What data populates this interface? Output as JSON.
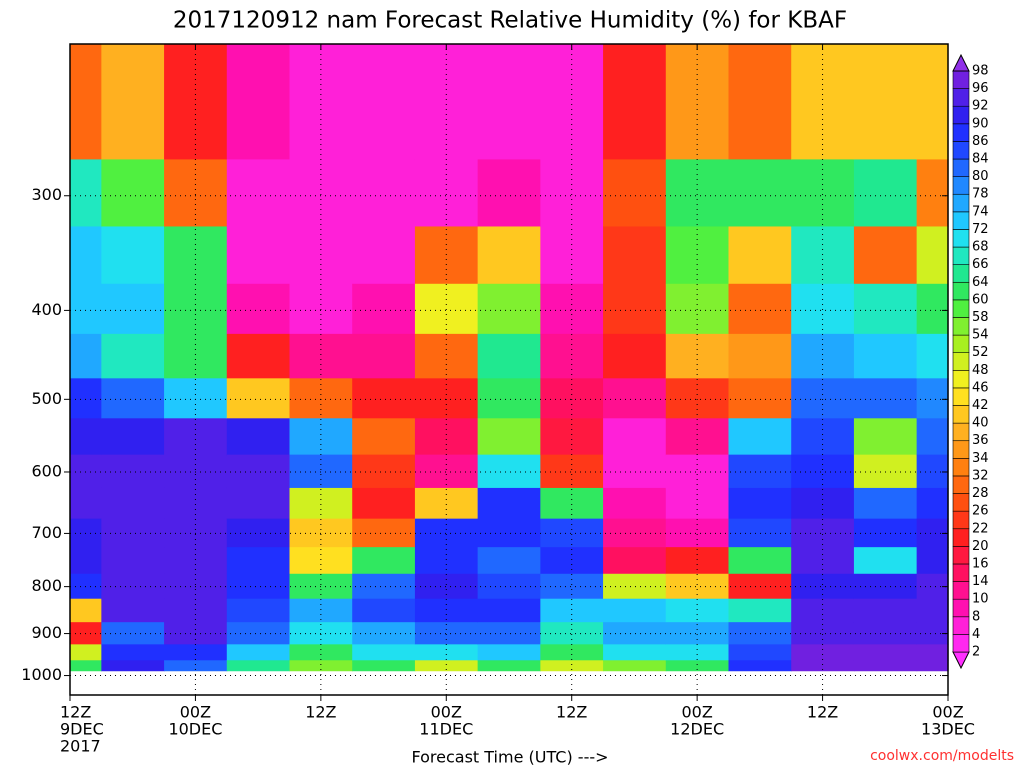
{
  "chart_data": {
    "type": "contour",
    "title": "2017120912 nam Forecast Relative Humidity (%) for KBAF",
    "x_label": "Forecast Time (UTC) --->",
    "credit": "coolwx.com/modelts",
    "log_y": true,
    "grid": true,
    "xlim": [
      0,
      84
    ],
    "xticks": [
      {
        "value": 0,
        "label": [
          "12Z",
          "9DEC",
          "2017"
        ]
      },
      {
        "value": 12,
        "label": [
          "00Z",
          "10DEC"
        ]
      },
      {
        "value": 24,
        "label": [
          "12Z"
        ]
      },
      {
        "value": 36,
        "label": [
          "00Z",
          "11DEC"
        ]
      },
      {
        "value": 48,
        "label": [
          "12Z"
        ]
      },
      {
        "value": 60,
        "label": [
          "00Z",
          "12DEC"
        ]
      },
      {
        "value": 72,
        "label": [
          "12Z"
        ]
      },
      {
        "value": 84,
        "label": [
          "00Z",
          "13DEC"
        ]
      }
    ],
    "ylim": [
      1050,
      205
    ],
    "yticks": [
      300,
      400,
      500,
      600,
      700,
      800,
      900,
      1000
    ],
    "levels": [
      2,
      4,
      8,
      10,
      14,
      16,
      20,
      22,
      26,
      28,
      32,
      34,
      36,
      40,
      42,
      46,
      48,
      52,
      54,
      58,
      60,
      64,
      66,
      68,
      72,
      74,
      78,
      80,
      84,
      86,
      90,
      92,
      96,
      98
    ],
    "colors": [
      "#ff30ff",
      "#ff28f0",
      "#ff20d8",
      "#ff10b0",
      "#ff1090",
      "#ff1060",
      "#ff1840",
      "#ff2020",
      "#ff3818",
      "#ff5010",
      "#ff6810",
      "#ff8010",
      "#ff9818",
      "#ffb020",
      "#ffc820",
      "#ffe020",
      "#f0f020",
      "#d0f020",
      "#a8f020",
      "#80f030",
      "#50f040",
      "#30e860",
      "#20e890",
      "#20e8c0",
      "#20e0f0",
      "#20c8ff",
      "#20a8ff",
      "#2088ff",
      "#2068ff",
      "#2048ff",
      "#2030ff",
      "#3020f0",
      "#5020e8",
      "#7020e0",
      "#9030e8"
    ],
    "field": {
      "x": [
        0,
        6,
        12,
        18,
        24,
        30,
        36,
        42,
        48,
        54,
        60,
        66,
        72,
        78,
        84
      ],
      "pressure": [
        250,
        300,
        350,
        400,
        450,
        500,
        550,
        600,
        650,
        700,
        750,
        800,
        850,
        900,
        950,
        975
      ],
      "values": [
        [
          30,
          66,
          72,
          72,
          76,
          88,
          90,
          92,
          92,
          90,
          90,
          88,
          40,
          20,
          50,
          60
        ],
        [
          36,
          58,
          70,
          72,
          66,
          80,
          90,
          92,
          92,
          92,
          94,
          92,
          92,
          80,
          86,
          90
        ],
        [
          20,
          30,
          62,
          62,
          60,
          72,
          92,
          94,
          94,
          94,
          92,
          92,
          92,
          92,
          86,
          80
        ],
        [
          8,
          6,
          6,
          8,
          20,
          40,
          90,
          92,
          92,
          90,
          88,
          86,
          84,
          80,
          72,
          64
        ],
        [
          4,
          4,
          4,
          6,
          10,
          30,
          76,
          80,
          50,
          40,
          44,
          60,
          74,
          70,
          62,
          54
        ],
        [
          4,
          4,
          6,
          8,
          10,
          20,
          30,
          24,
          20,
          30,
          60,
          80,
          84,
          76,
          70,
          60
        ],
        [
          4,
          6,
          30,
          46,
          30,
          20,
          14,
          12,
          40,
          86,
          88,
          90,
          88,
          80,
          70,
          50
        ],
        [
          4,
          8,
          40,
          56,
          64,
          62,
          56,
          70,
          86,
          88,
          80,
          84,
          88,
          82,
          72,
          60
        ],
        [
          4,
          4,
          6,
          8,
          12,
          14,
          16,
          24,
          60,
          84,
          88,
          82,
          72,
          66,
          60,
          50
        ],
        [
          20,
          26,
          24,
          24,
          20,
          10,
          6,
          6,
          8,
          10,
          14,
          50,
          72,
          74,
          70,
          56
        ],
        [
          34,
          60,
          58,
          56,
          36,
          24,
          10,
          6,
          6,
          8,
          20,
          40,
          70,
          76,
          70,
          60
        ],
        [
          30,
          60,
          40,
          30,
          34,
          30,
          72,
          84,
          88,
          84,
          60,
          20,
          66,
          82,
          84,
          86
        ],
        [
          40,
          60,
          66,
          70,
          74,
          82,
          84,
          88,
          90,
          92,
          94,
          90,
          92,
          94,
          96,
          96
        ],
        [
          40,
          64,
          30,
          66,
          72,
          80,
          54,
          50,
          82,
          88,
          70,
          90,
          92,
          94,
          96,
          96
        ],
        [
          40,
          32,
          50,
          60,
          70,
          78,
          80,
          84,
          88,
          90,
          90,
          92,
          94,
          94,
          96,
          96
        ]
      ]
    }
  }
}
